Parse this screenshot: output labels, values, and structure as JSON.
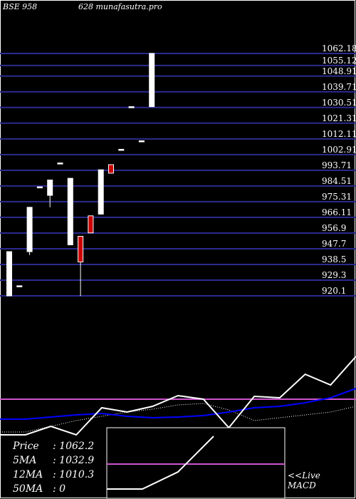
{
  "header": {
    "exchange": "BSE 958",
    "code_and_site": "628 munafasutra.pro"
  },
  "chart_data": {
    "type": "candlestick",
    "price_axis": [
      1062.18,
      1055.12,
      1048.91,
      1039.71,
      1030.51,
      1021.31,
      1012.11,
      1002.91,
      993.71,
      984.51,
      975.31,
      966.11,
      956.9,
      947.7,
      938.5,
      929.3,
      920.1
    ],
    "ylim": [
      920.1,
      1062.18
    ],
    "candles": [
      {
        "open": 920.1,
        "close": 946.0,
        "high": 946.0,
        "low": 920.1,
        "color": "white"
      },
      {
        "open": 926.0,
        "close": 926.0,
        "high": 926.0,
        "low": 926.0,
        "color": "white"
      },
      {
        "open": 946.0,
        "close": 972.0,
        "high": 972.0,
        "low": 944.0,
        "color": "white"
      },
      {
        "open": 984.0,
        "close": 984.0,
        "high": 984.0,
        "low": 984.0,
        "color": "white"
      },
      {
        "open": 979.0,
        "close": 988.0,
        "high": 988.0,
        "low": 972.0,
        "color": "white"
      },
      {
        "open": 998.0,
        "close": 998.0,
        "high": 998.0,
        "low": 998.0,
        "color": "white"
      },
      {
        "open": 950.0,
        "close": 989.0,
        "high": 989.0,
        "low": 950.0,
        "color": "white"
      },
      {
        "open": 955.0,
        "close": 940.0,
        "high": 955.0,
        "low": 920.0,
        "color": "red"
      },
      {
        "open": 967.0,
        "close": 957.0,
        "high": 967.0,
        "low": 957.0,
        "color": "red"
      },
      {
        "open": 968.0,
        "close": 994.0,
        "high": 994.0,
        "low": 968.0,
        "color": "white"
      },
      {
        "open": 997.0,
        "close": 992.0,
        "high": 997.0,
        "low": 992.0,
        "color": "red"
      },
      {
        "open": 1006.0,
        "close": 1006.0,
        "high": 1006.0,
        "low": 1006.0,
        "color": "white"
      },
      {
        "open": 1031.0,
        "close": 1031.0,
        "high": 1031.0,
        "low": 1031.0,
        "color": "white"
      },
      {
        "open": 1011.0,
        "close": 1011.0,
        "high": 1011.0,
        "low": 1011.0,
        "color": "white"
      },
      {
        "open": 1031.0,
        "close": 1062.2,
        "high": 1062.2,
        "low": 1031.0,
        "color": "white"
      }
    ],
    "indicators": {
      "price_line": [
        610,
        610,
        598,
        610,
        572,
        578,
        570,
        555,
        560,
        600,
        556,
        558,
        525,
        540,
        500
      ],
      "ma_blue": [
        588,
        588,
        585,
        582,
        580,
        584,
        586,
        585,
        583,
        578,
        572,
        570,
        565,
        558,
        545
      ],
      "ma_dotted": [
        606,
        606,
        598,
        590,
        584,
        578,
        574,
        568,
        566,
        575,
        590,
        586,
        582,
        578,
        570
      ],
      "reference_line": 560
    },
    "macd": {
      "line": [
        686,
        686,
        662,
        612
      ],
      "signal_level": 651
    }
  },
  "info": {
    "price_label": "Price",
    "price_value": ": 1062.2",
    "ma5_label": "5MA",
    "ma5_value": ": 1032.9",
    "ma12_label": "12MA",
    "ma12_value": ": 1010.3",
    "ma50_label": "50MA",
    "ma50_value": ": 0"
  },
  "macd_label": {
    "line1": "<<Live",
    "line2": "MACD"
  },
  "colors": {
    "background": "#000000",
    "grid": "#2b2b8f",
    "up_candle": "#ffffff",
    "down_candle": "#cc0000",
    "ma_blue": "#0000ff",
    "reference": "#cc55cc"
  }
}
